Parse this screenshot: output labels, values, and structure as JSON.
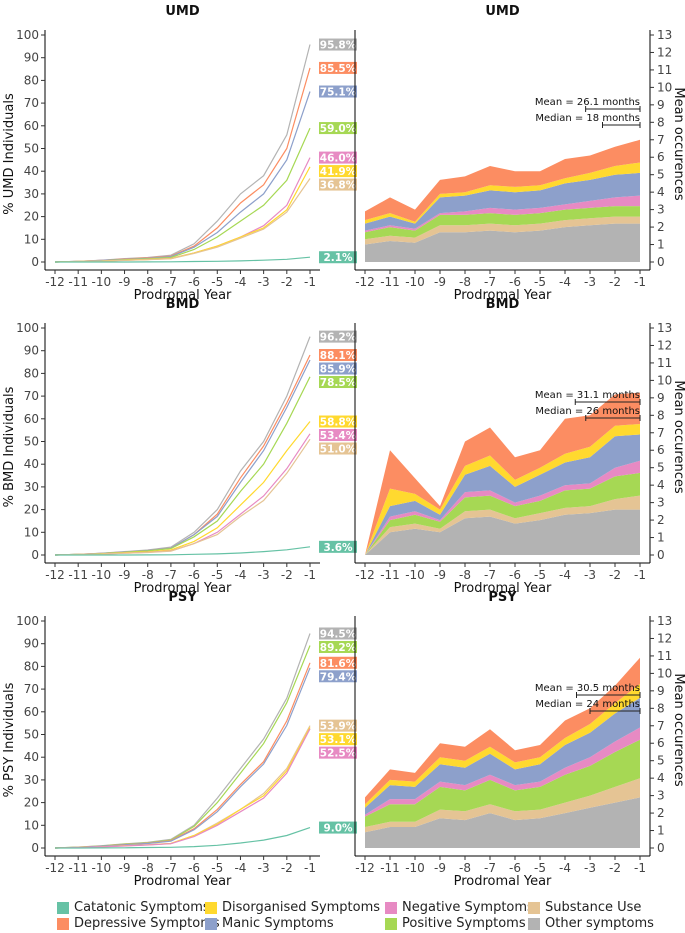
{
  "colors": {
    "catatonic": "#66c2a5",
    "depressive": "#fc8d62",
    "disorganised": "#ffd92f",
    "manic": "#8da0cb",
    "negative": "#e78ac3",
    "positive": "#a6d854",
    "substance": "#e5c494",
    "other": "#b3b3b3"
  },
  "legend": [
    {
      "key": "catatonic",
      "label": "Catatonic Symptoms"
    },
    {
      "key": "depressive",
      "label": "Depressive Symptoms"
    },
    {
      "key": "disorganised",
      "label": "Disorganised Symptoms"
    },
    {
      "key": "manic",
      "label": "Manic Symptoms"
    },
    {
      "key": "negative",
      "label": "Negative Symptoms"
    },
    {
      "key": "positive",
      "label": "Positive Symptoms"
    },
    {
      "key": "substance",
      "label": "Substance Use"
    },
    {
      "key": "other",
      "label": "Other symptoms"
    }
  ],
  "chart_data": [
    {
      "type": "line",
      "title": "UMD",
      "xlabel": "Prodromal Year",
      "ylabel": "% UMD Individuals",
      "x": [
        -12,
        -11,
        -10,
        -9,
        -8,
        -7,
        -6,
        -5,
        -4,
        -3,
        -2,
        -1
      ],
      "x_ticks": [
        "-12",
        "-11",
        "-10",
        "-9",
        "-8",
        "-7",
        "-6",
        "-5",
        "-4",
        "-3",
        "-2",
        "-1"
      ],
      "ylim": [
        0,
        100
      ],
      "y_ticks": [
        "0",
        "10",
        "20",
        "30",
        "40",
        "50",
        "60",
        "70",
        "80",
        "90",
        "100"
      ],
      "series": [
        {
          "key": "other",
          "values": [
            0,
            0.3,
            0.8,
            1.5,
            2,
            3,
            8,
            18,
            30,
            38,
            56,
            95.8
          ],
          "end_label": "95.8%"
        },
        {
          "key": "depressive",
          "values": [
            0,
            0.3,
            0.7,
            1.3,
            1.8,
            2.6,
            7,
            15,
            26,
            34,
            50,
            85.5
          ],
          "end_label": "85.5%"
        },
        {
          "key": "manic",
          "values": [
            0,
            0.3,
            0.7,
            1.2,
            1.6,
            2.4,
            6.5,
            13,
            22,
            30,
            45,
            75.1
          ],
          "end_label": "75.1%"
        },
        {
          "key": "positive",
          "values": [
            0,
            0.2,
            0.5,
            1,
            1.4,
            2,
            5.5,
            11,
            18,
            25,
            36,
            59
          ],
          "end_label": "59.0%"
        },
        {
          "key": "negative",
          "values": [
            0,
            0.2,
            0.4,
            0.8,
            1.1,
            1.6,
            4,
            7,
            11,
            16,
            25,
            46
          ],
          "end_label": "46.0%"
        },
        {
          "key": "disorganised",
          "values": [
            0,
            0.2,
            0.4,
            0.8,
            1.1,
            1.5,
            4,
            7,
            11,
            15,
            23,
            41.9
          ],
          "end_label": "41.9%"
        },
        {
          "key": "substance",
          "values": [
            0,
            0.2,
            0.4,
            0.7,
            1,
            1.4,
            3.8,
            6.5,
            10.5,
            14.5,
            22,
            36.8
          ],
          "end_label": "36.8%"
        },
        {
          "key": "catatonic",
          "values": [
            0,
            0,
            0,
            0,
            0.05,
            0.1,
            0.2,
            0.3,
            0.5,
            0.8,
            1.2,
            2.1
          ],
          "end_label": "2.1%"
        }
      ]
    },
    {
      "type": "area",
      "title": "UMD",
      "xlabel": "Prodromal Year",
      "ylabel": "Mean occurences",
      "x": [
        -12,
        -11,
        -10,
        -9,
        -8,
        -7,
        -6,
        -5,
        -4,
        -3,
        -2,
        -1
      ],
      "x_ticks": [
        "-12",
        "-11",
        "-10",
        "-9",
        "-8",
        "-7",
        "-6",
        "-5",
        "-4",
        "-3",
        "-2",
        "-1"
      ],
      "ylim": [
        0,
        13
      ],
      "y_ticks": [
        "0",
        "1",
        "2",
        "3",
        "4",
        "5",
        "6",
        "7",
        "8",
        "9",
        "10",
        "11",
        "12",
        "13"
      ],
      "annotations": [
        {
          "text": "Mean = 26.1 months",
          "start": -3.175,
          "end": -1
        },
        {
          "text": "Median = 18 months",
          "start": -2.5,
          "end": -1
        }
      ],
      "series": [
        {
          "key": "other",
          "values": [
            1,
            1.2,
            1.1,
            1.7,
            1.7,
            1.8,
            1.7,
            1.8,
            2,
            2.1,
            2.2,
            2.2
          ]
        },
        {
          "key": "substance",
          "values": [
            0.3,
            0.3,
            0.3,
            0.4,
            0.4,
            0.4,
            0.4,
            0.4,
            0.4,
            0.4,
            0.4,
            0.4
          ]
        },
        {
          "key": "positive",
          "values": [
            0.4,
            0.5,
            0.4,
            0.6,
            0.6,
            0.6,
            0.6,
            0.6,
            0.6,
            0.6,
            0.6,
            0.6
          ]
        },
        {
          "key": "negative",
          "values": [
            0.1,
            0.1,
            0.1,
            0.1,
            0.2,
            0.3,
            0.3,
            0.3,
            0.3,
            0.4,
            0.5,
            0.6
          ]
        },
        {
          "key": "manic",
          "values": [
            0.4,
            0.5,
            0.3,
            0.9,
            0.9,
            1,
            1,
            1,
            1.2,
            1.2,
            1.3,
            1.3
          ]
        },
        {
          "key": "disorganised",
          "values": [
            0.2,
            0.2,
            0.1,
            0.2,
            0.2,
            0.3,
            0.3,
            0.3,
            0.3,
            0.4,
            0.5,
            0.6
          ]
        },
        {
          "key": "depressive",
          "values": [
            0.5,
            0.9,
            0.7,
            0.8,
            0.9,
            1.1,
            0.9,
            0.8,
            1.1,
            1,
            1.1,
            1.3
          ]
        }
      ]
    },
    {
      "type": "line",
      "title": "BMD",
      "xlabel": "Prodromal Year",
      "ylabel": "% BMD Individuals",
      "x": [
        -12,
        -11,
        -10,
        -9,
        -8,
        -7,
        -6,
        -5,
        -4,
        -3,
        -2,
        -1
      ],
      "x_ticks": [
        "-12",
        "-11",
        "-10",
        "-9",
        "-8",
        "-7",
        "-6",
        "-5",
        "-4",
        "-3",
        "-2",
        "-1"
      ],
      "ylim": [
        0,
        100
      ],
      "y_ticks": [
        "0",
        "10",
        "20",
        "30",
        "40",
        "50",
        "60",
        "70",
        "80",
        "90",
        "100"
      ],
      "series": [
        {
          "key": "other",
          "values": [
            0,
            0.3,
            0.8,
            1.5,
            2.2,
            3.5,
            10,
            20,
            37,
            50,
            70,
            96.2
          ],
          "end_label": "96.2%"
        },
        {
          "key": "depressive",
          "values": [
            0,
            0.3,
            0.7,
            1.3,
            2,
            3,
            9,
            18,
            34,
            48,
            67,
            88.1
          ],
          "end_label": "88.1%"
        },
        {
          "key": "manic",
          "values": [
            0,
            0.3,
            0.7,
            1.3,
            2,
            3,
            9,
            17,
            32,
            46,
            65,
            85.9
          ],
          "end_label": "85.9%"
        },
        {
          "key": "positive",
          "values": [
            0,
            0.3,
            0.6,
            1.2,
            1.8,
            2.8,
            8,
            15,
            28,
            40,
            58,
            78.5
          ],
          "end_label": "78.5%"
        },
        {
          "key": "disorganised",
          "values": [
            0,
            0.2,
            0.5,
            1,
            1.4,
            2.2,
            6,
            12,
            22,
            32,
            46,
            58.8
          ],
          "end_label": "58.8%"
        },
        {
          "key": "negative",
          "values": [
            0,
            0.2,
            0.4,
            0.8,
            1.2,
            1.8,
            5,
            10,
            18,
            26,
            38,
            53.4
          ],
          "end_label": "53.4%"
        },
        {
          "key": "substance",
          "values": [
            0,
            0.2,
            0.4,
            0.8,
            1.1,
            1.7,
            5,
            9,
            17,
            24,
            36,
            51
          ],
          "end_label": "51.0%"
        },
        {
          "key": "catatonic",
          "values": [
            0,
            0,
            0,
            0,
            0.05,
            0.1,
            0.3,
            0.5,
            0.9,
            1.5,
            2.3,
            3.6
          ],
          "end_label": "3.6%"
        }
      ]
    },
    {
      "type": "area",
      "title": "BMD",
      "xlabel": "Prodromal Year",
      "ylabel": "Mean occurences",
      "x": [
        -12,
        -11,
        -10,
        -9,
        -8,
        -7,
        -6,
        -5,
        -4,
        -3,
        -2,
        -1
      ],
      "x_ticks": [
        "-12",
        "-11",
        "-10",
        "-9",
        "-8",
        "-7",
        "-6",
        "-5",
        "-4",
        "-3",
        "-2",
        "-1"
      ],
      "ylim": [
        0,
        13
      ],
      "y_ticks": [
        "0",
        "1",
        "2",
        "3",
        "4",
        "5",
        "6",
        "7",
        "8",
        "9",
        "10",
        "11",
        "12",
        "13"
      ],
      "annotations": [
        {
          "text": "Mean = 31.1 months",
          "start": -3.59,
          "end": -1
        },
        {
          "text": "Median = 26 months",
          "start": -3.17,
          "end": -1
        }
      ],
      "series": [
        {
          "key": "other",
          "values": [
            0,
            1.3,
            1.5,
            1.3,
            2.1,
            2.2,
            1.8,
            2,
            2.3,
            2.4,
            2.6,
            2.6
          ]
        },
        {
          "key": "substance",
          "values": [
            0,
            0.3,
            0.3,
            0.2,
            0.4,
            0.4,
            0.3,
            0.4,
            0.4,
            0.4,
            0.6,
            0.8
          ]
        },
        {
          "key": "positive",
          "values": [
            0,
            0.4,
            0.5,
            0.4,
            0.8,
            0.8,
            0.7,
            0.7,
            1,
            1,
            1.3,
            1.3
          ]
        },
        {
          "key": "negative",
          "values": [
            0,
            0.2,
            0.2,
            0.1,
            0.3,
            0.3,
            0.2,
            0.3,
            0.3,
            0.3,
            0.5,
            0.7
          ]
        },
        {
          "key": "manic",
          "values": [
            0,
            0.6,
            0.6,
            0.3,
            1,
            1.4,
            0.9,
            1.2,
            1.3,
            1.5,
            1.8,
            1.5
          ]
        },
        {
          "key": "disorganised",
          "values": [
            0,
            1,
            0.4,
            0.3,
            0.5,
            0.6,
            0.4,
            0.4,
            0.5,
            0.6,
            0.6,
            0.6
          ]
        },
        {
          "key": "depressive",
          "values": [
            0,
            2.2,
            0.9,
            0.2,
            1.4,
            1.6,
            1.3,
            1,
            2,
            1.8,
            1.8,
            1.8
          ]
        }
      ]
    },
    {
      "type": "line",
      "title": "PSY",
      "xlabel": "Prodromal Year",
      "ylabel": "% PSY Individuals",
      "x": [
        -12,
        -11,
        -10,
        -9,
        -8,
        -7,
        -6,
        -5,
        -4,
        -3,
        -2,
        -1
      ],
      "x_ticks": [
        "-12",
        "-11",
        "-10",
        "-9",
        "-8",
        "-7",
        "-6",
        "-5",
        "-4",
        "-3",
        "-2",
        "-1"
      ],
      "ylim": [
        0,
        100
      ],
      "y_ticks": [
        "0",
        "10",
        "20",
        "30",
        "40",
        "50",
        "60",
        "70",
        "80",
        "90",
        "100"
      ],
      "series": [
        {
          "key": "other",
          "values": [
            0,
            0.4,
            1,
            1.8,
            2.5,
            3.8,
            10,
            22,
            35,
            48,
            66,
            94.5
          ],
          "end_label": "94.5%"
        },
        {
          "key": "positive",
          "values": [
            0,
            0.4,
            0.9,
            1.7,
            2.3,
            3.5,
            9.5,
            20,
            33,
            46,
            64,
            89.2
          ],
          "end_label": "89.2%"
        },
        {
          "key": "depressive",
          "values": [
            0,
            0.3,
            0.8,
            1.5,
            2.1,
            3.2,
            8.5,
            17,
            28,
            38,
            56,
            81.6
          ],
          "end_label": "81.6%"
        },
        {
          "key": "manic",
          "values": [
            0,
            0.3,
            0.8,
            1.4,
            2,
            3,
            8,
            16,
            27,
            37,
            54,
            79.4
          ],
          "end_label": "79.4%"
        },
        {
          "key": "substance",
          "values": [
            0,
            0.2,
            0.5,
            1,
            1.4,
            2,
            5.5,
            11,
            17,
            24,
            35,
            53.9
          ],
          "end_label": "53.9%"
        },
        {
          "key": "disorganised",
          "values": [
            0,
            0.2,
            0.5,
            1,
            1.4,
            2,
            5.5,
            10.5,
            17,
            23,
            34,
            53.1
          ],
          "end_label": "53.1%"
        },
        {
          "key": "negative",
          "values": [
            0,
            0.2,
            0.5,
            0.9,
            1.3,
            1.9,
            5,
            10,
            16,
            22,
            33,
            52.5
          ],
          "end_label": "52.5%"
        },
        {
          "key": "catatonic",
          "values": [
            0,
            0,
            0.05,
            0.1,
            0.2,
            0.3,
            0.6,
            1.2,
            2.2,
            3.5,
            5.5,
            9
          ],
          "end_label": "9.0%"
        }
      ]
    },
    {
      "type": "area",
      "title": "PSY",
      "xlabel": "Prodromal Year",
      "ylabel": "Mean occurences",
      "x": [
        -12,
        -11,
        -10,
        -9,
        -8,
        -7,
        -6,
        -5,
        -4,
        -3,
        -2,
        -1
      ],
      "x_ticks": [
        "-12",
        "-11",
        "-10",
        "-9",
        "-8",
        "-7",
        "-6",
        "-5",
        "-4",
        "-3",
        "-2",
        "-1"
      ],
      "ylim": [
        0,
        13
      ],
      "y_ticks": [
        "0",
        "1",
        "2",
        "3",
        "4",
        "5",
        "6",
        "7",
        "8",
        "9",
        "10",
        "11",
        "12",
        "13"
      ],
      "annotations": [
        {
          "text": "Mean = 30.5 months",
          "start": -3.54,
          "end": -1
        },
        {
          "text": "Median = 24 months",
          "start": -3,
          "end": -1
        }
      ],
      "series": [
        {
          "key": "other",
          "values": [
            0.9,
            1.2,
            1.2,
            1.7,
            1.6,
            2,
            1.6,
            1.7,
            2,
            2.3,
            2.6,
            2.9
          ]
        },
        {
          "key": "substance",
          "values": [
            0.3,
            0.3,
            0.3,
            0.5,
            0.5,
            0.5,
            0.5,
            0.5,
            0.6,
            0.7,
            0.9,
            1.1
          ]
        },
        {
          "key": "positive",
          "values": [
            0.6,
            1,
            1,
            1.3,
            1.2,
            1.4,
            1.2,
            1.3,
            1.6,
            1.7,
            2,
            2.2
          ]
        },
        {
          "key": "negative",
          "values": [
            0.1,
            0.3,
            0.3,
            0.3,
            0.3,
            0.3,
            0.3,
            0.3,
            0.4,
            0.5,
            0.6,
            0.7
          ]
        },
        {
          "key": "manic",
          "values": [
            0.4,
            0.8,
            0.7,
            1,
            1,
            1.2,
            0.9,
            1,
            1.3,
            1.4,
            1.6,
            1.7
          ]
        },
        {
          "key": "disorganised",
          "values": [
            0.2,
            0.3,
            0.3,
            0.4,
            0.4,
            0.4,
            0.4,
            0.4,
            0.4,
            0.5,
            0.6,
            0.8
          ]
        },
        {
          "key": "depressive",
          "values": [
            0.4,
            0.6,
            0.5,
            0.8,
            0.8,
            1,
            0.7,
            0.7,
            1,
            0.9,
            1,
            1.5
          ]
        }
      ]
    }
  ]
}
